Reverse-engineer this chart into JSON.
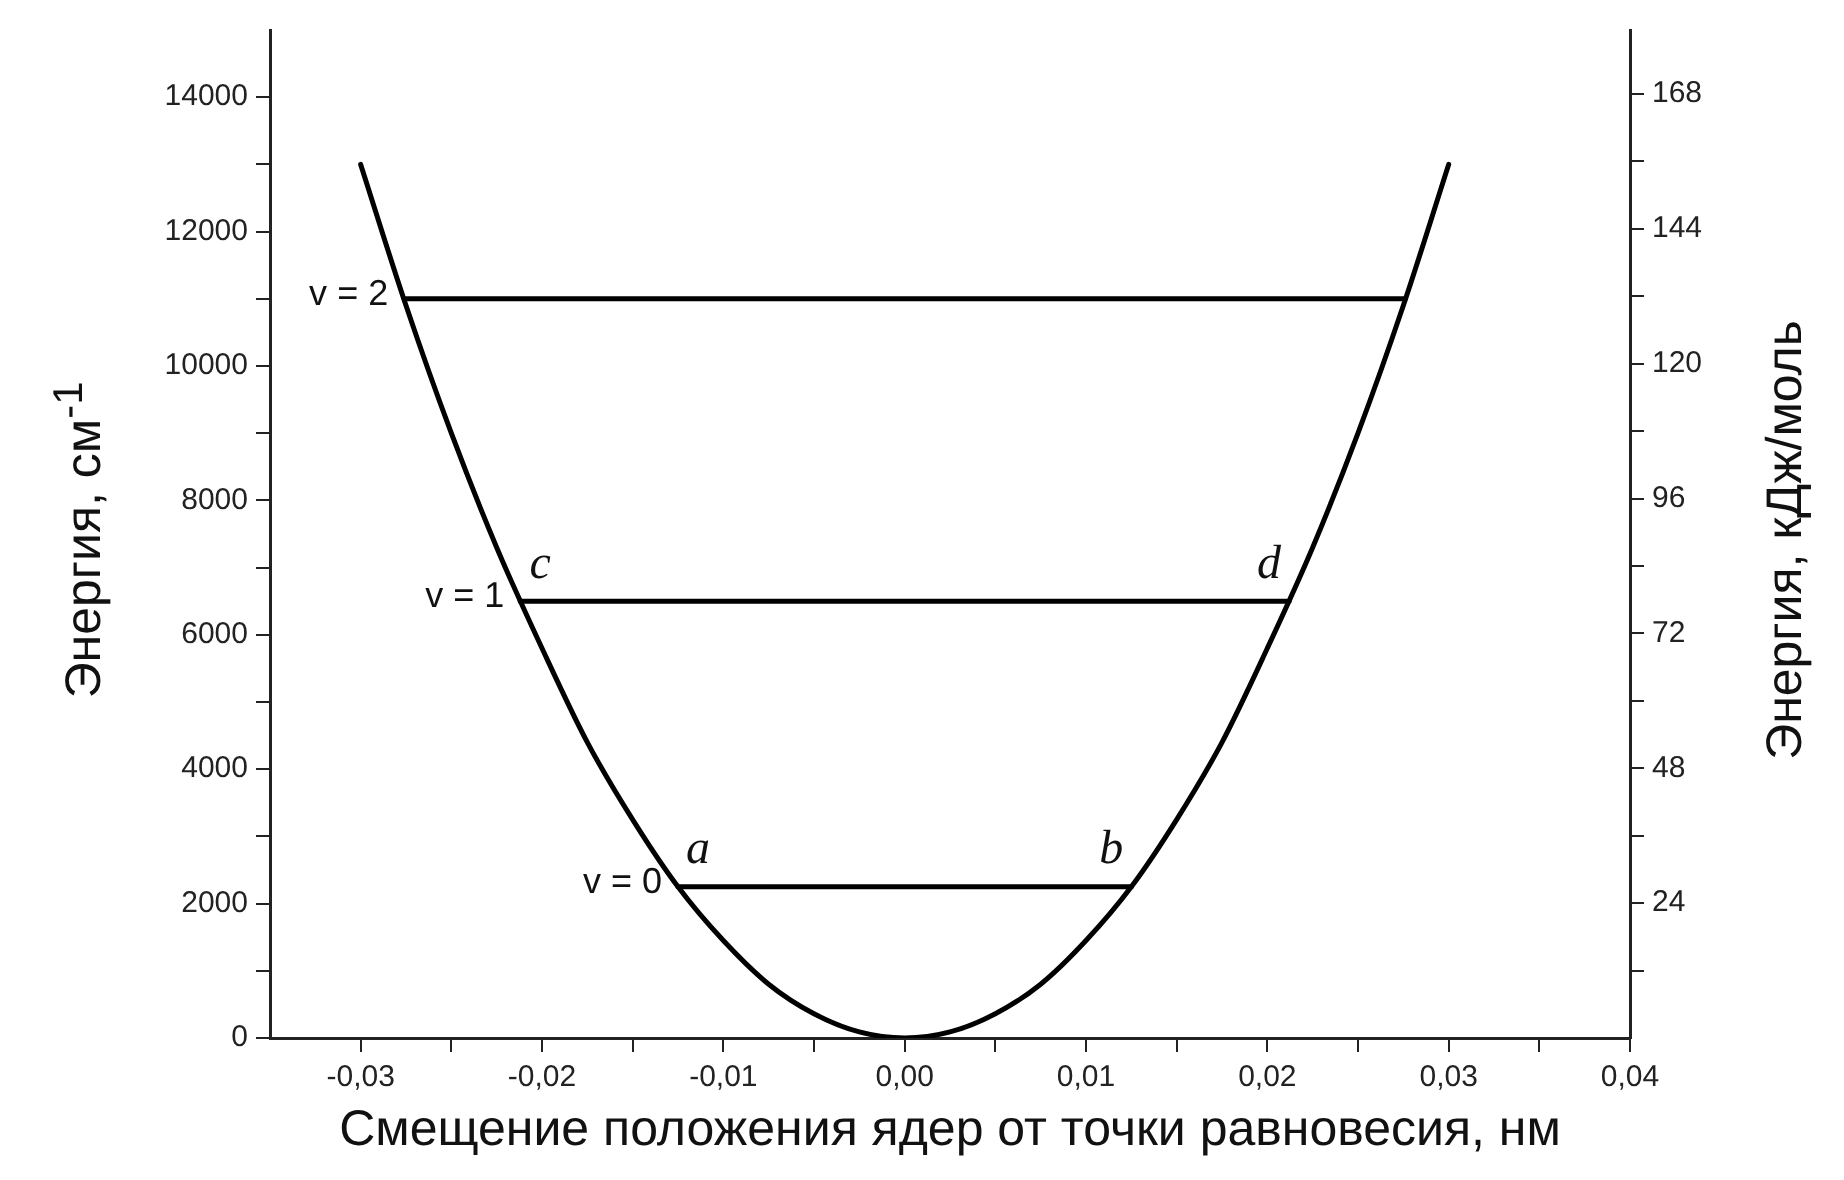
{
  "chart_data": {
    "type": "line",
    "xlabel": "Смещение  положения ядер от точки равновесия,  нм",
    "ylabel": "Энергия, см$^{-1}$",
    "y2label": "Энергия, кДж/моль",
    "xlim": [
      -0.035,
      0.04
    ],
    "xticks": [
      {
        "value": -0.03,
        "label": "-0,03"
      },
      {
        "value": -0.025,
        "label": null
      },
      {
        "value": -0.02,
        "label": "-0,02"
      },
      {
        "value": -0.015,
        "label": null
      },
      {
        "value": -0.01,
        "label": "-0,01"
      },
      {
        "value": -0.005,
        "label": null
      },
      {
        "value": 0,
        "label": "0,00"
      },
      {
        "value": 0.005,
        "label": null
      },
      {
        "value": 0.01,
        "label": "0,01"
      },
      {
        "value": 0.015,
        "label": null
      },
      {
        "value": 0.02,
        "label": "0,02"
      },
      {
        "value": 0.025,
        "label": null
      },
      {
        "value": 0.03,
        "label": "0,03"
      },
      {
        "value": 0.035,
        "label": null
      },
      {
        "value": 0.04,
        "label": "0,04"
      }
    ],
    "ylim": [
      0,
      15000
    ],
    "yticks": [
      0,
      {
        "value": 1000,
        "label": null
      },
      2000,
      {
        "value": 3000,
        "label": null
      },
      4000,
      {
        "value": 5000,
        "label": null
      },
      6000,
      {
        "value": 7000,
        "label": null
      },
      8000,
      {
        "value": 9000,
        "label": null
      },
      10000,
      {
        "value": 11000,
        "label": null
      },
      12000,
      {
        "value": 13000,
        "label": null
      },
      14000
    ],
    "y2lim": [
      0,
      179.4
    ],
    "y2ticks": [
      {
        "value": 12,
        "label": null
      },
      24,
      {
        "value": 36,
        "label": null
      },
      48,
      {
        "value": 60,
        "label": null
      },
      72,
      {
        "value": 84,
        "label": null
      },
      96,
      {
        "value": 108,
        "label": null
      },
      120,
      {
        "value": 132,
        "label": null
      },
      144,
      {
        "value": 156,
        "label": null
      },
      168
    ],
    "grid": false,
    "legend": false,
    "marker": "none",
    "line_style": "solid",
    "series": [
      {
        "color": "#000000",
        "x": [
          -0.03,
          -0.0275,
          -0.025,
          -0.0225,
          -0.02,
          -0.0175,
          -0.015,
          -0.0125,
          -0.01,
          -0.0075,
          -0.005,
          -0.0025,
          0,
          0.0025,
          0.005,
          0.0075,
          0.01,
          0.0125,
          0.015,
          0.0175,
          0.02,
          0.0225,
          0.025,
          0.0275,
          0.03
        ],
        "values": [
          13000,
          10900,
          9000,
          7300,
          5800,
          4400,
          3250,
          2250,
          1450,
          800,
          360,
          90,
          0,
          90,
          360,
          800,
          1450,
          2250,
          3250,
          4400,
          5800,
          7300,
          9000,
          10900,
          13000
        ]
      },
      {
        "name": "v = 0",
        "color": "#000000",
        "x": [
          -0.0125,
          0.0125
        ],
        "values": [
          2250,
          2250
        ]
      },
      {
        "name": "v = 1",
        "color": "#000000",
        "x": [
          -0.0212,
          0.0212
        ],
        "values": [
          6500,
          6500
        ]
      },
      {
        "name": "v = 2",
        "color": "#000000",
        "x": [
          -0.0276,
          0.0276
        ],
        "values": [
          11000,
          11000
        ]
      }
    ],
    "annotations": [
      {
        "text": "a",
        "x": -0.0125,
        "y": 2250
      },
      {
        "text": "b",
        "x": 0.0125,
        "y": 2250
      },
      {
        "text": "c",
        "x": -0.0212,
        "y": 6500
      },
      {
        "text": "d",
        "x": 0.0212,
        "y": 6500
      }
    ]
  }
}
